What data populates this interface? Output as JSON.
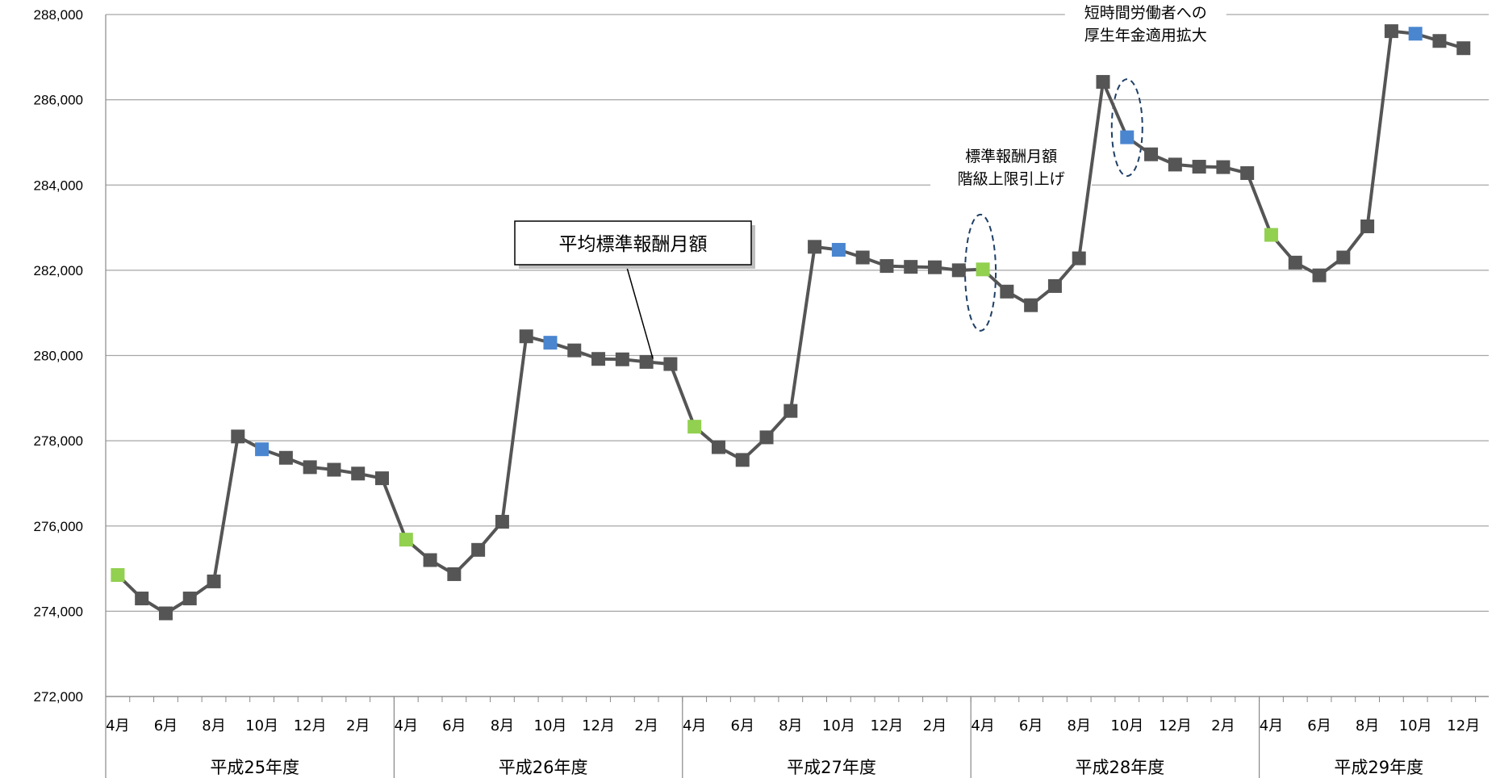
{
  "chart_data": {
    "type": "line",
    "title": "",
    "xlabel": "",
    "ylabel": "",
    "ylim": [
      272000,
      288000
    ],
    "ytick_step": 2000,
    "ytick_labels": [
      "272,000",
      "274,000",
      "276,000",
      "278,000",
      "280,000",
      "282,000",
      "284,000",
      "286,000",
      "288,000"
    ],
    "grid": "horizontal",
    "month_labels": [
      "4月",
      "6月",
      "8月",
      "10月",
      "12月",
      "2月",
      "4月",
      "6月",
      "8月",
      "10月",
      "12月",
      "2月",
      "4月",
      "6月",
      "8月",
      "10月",
      "12月",
      "2月",
      "4月",
      "6月",
      "8月",
      "10月",
      "12月",
      "2月",
      "4月",
      "6月",
      "8月",
      "10月",
      "12月"
    ],
    "fiscal_years": [
      {
        "label": "平成25年度",
        "months": 12
      },
      {
        "label": "平成26年度",
        "months": 12
      },
      {
        "label": "平成27年度",
        "months": 12
      },
      {
        "label": "平成28年度",
        "months": 12
      },
      {
        "label": "平成29年度",
        "months": 9
      }
    ],
    "colors": {
      "line": "#555555",
      "default_marker": "#555555",
      "april_marker": "#92D050",
      "october_marker": "#4A86D0",
      "grid": "#a6a6a6"
    },
    "marker_colors_by_month": {
      "4": "april_marker",
      "10": "october_marker"
    },
    "series": [
      {
        "values": [
          274850,
          274300,
          273950,
          274300,
          274700,
          278100,
          277800,
          277600,
          277380,
          277320,
          277230,
          277120,
          275680,
          275200,
          274870,
          275440,
          276100,
          280450,
          280300,
          280120,
          279920,
          279910,
          279850,
          279800,
          278330,
          277850,
          277550,
          278080,
          278700,
          282550,
          282480,
          282300,
          282100,
          282080,
          282070,
          282000,
          282020,
          281500,
          281180,
          281630,
          282280,
          286420,
          285120,
          284720,
          284480,
          284430,
          284420,
          284280,
          282830,
          282180,
          281880,
          282300,
          283030,
          287610,
          287550,
          287380,
          287210
        ]
      }
    ],
    "annotations": [
      {
        "lines": [
          "標準報酬月額",
          "階級上限引上げ"
        ],
        "at_index": 36
      },
      {
        "lines": [
          "短時間労働者への",
          "厚生年金適用拡大"
        ],
        "at_index": 42
      }
    ],
    "callout": {
      "text": "平均標準報酬月額",
      "at_index": 22
    }
  }
}
